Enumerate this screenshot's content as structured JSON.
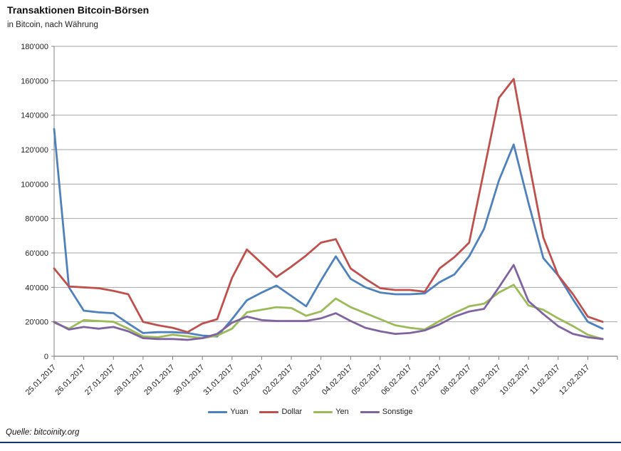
{
  "header": {
    "title": "Transaktionen Bitcoin-Börsen",
    "subtitle": "in Bitcoin, nach Währung"
  },
  "footer": {
    "source": "Quelle: bitcoinity.org",
    "rule_color": "#17375E"
  },
  "colors": {
    "gridline": "#A6A6A6",
    "axis": "#808080",
    "label_text": "#262626"
  },
  "chart_data": {
    "type": "line",
    "title": "Transaktionen Bitcoin-Börsen",
    "subtitle": "in Bitcoin, nach Währung",
    "source": "Quelle: bitcoinity.org",
    "grid": "horizontal",
    "legend_position": "bottom",
    "ylim": [
      0,
      180000
    ],
    "y_tick_step": 20000,
    "y_tick_labels": [
      "0",
      "20'000",
      "40'000",
      "60'000",
      "80'000",
      "100'000",
      "120'000",
      "140'000",
      "160'000",
      "180'000"
    ],
    "x_tick_labels": [
      "25.01.2017",
      "26.01.2017",
      "27.01.2017",
      "28.01.2017",
      "29.01.2017",
      "30.01.2017",
      "31.01.2017",
      "01.02.2017",
      "02.02.2017",
      "03.02.2017",
      "04.02.2017",
      "05.02.2017",
      "06.02.2017",
      "07.02.2017",
      "08.02.2017",
      "09.02.2017",
      "10.02.2017",
      "11.02.2017",
      "12.02.2017"
    ],
    "samples_per_day": 2,
    "series": [
      {
        "name": "Yuan",
        "color": "#4F81BD",
        "values": [
          132000,
          40000,
          26500,
          25500,
          25000,
          19000,
          13500,
          14000,
          14000,
          13500,
          12000,
          11500,
          21500,
          32500,
          37000,
          41000,
          35000,
          29000,
          44000,
          58000,
          45000,
          40000,
          37000,
          36000,
          36000,
          36500,
          43000,
          47500,
          58000,
          74000,
          102000,
          123000,
          89000,
          57000,
          47000,
          33000,
          20000,
          16000
        ]
      },
      {
        "name": "Dollar",
        "color": "#C0504D",
        "values": [
          51000,
          40500,
          40000,
          39500,
          38000,
          36000,
          20000,
          18000,
          16500,
          14000,
          19000,
          21500,
          45500,
          62000,
          54000,
          46000,
          52000,
          58500,
          66000,
          68000,
          51000,
          45000,
          39500,
          38500,
          38500,
          37500,
          51000,
          57500,
          66000,
          108000,
          150000,
          161000,
          114000,
          69000,
          47000,
          36000,
          23000,
          20000
        ]
      },
      {
        "name": "Yen",
        "color": "#9BBB59",
        "values": [
          19500,
          16000,
          21000,
          20500,
          20000,
          16000,
          11500,
          11000,
          12500,
          11500,
          10500,
          12000,
          16000,
          25500,
          27000,
          28500,
          28000,
          23500,
          26000,
          33500,
          28500,
          25000,
          21500,
          18000,
          16500,
          15500,
          20500,
          25000,
          29000,
          30500,
          37000,
          41500,
          29500,
          27000,
          22000,
          17500,
          12500,
          10000
        ]
      },
      {
        "name": "Sonstige",
        "color": "#8064A2",
        "values": [
          20000,
          15500,
          17000,
          16000,
          17000,
          14500,
          10500,
          10000,
          10000,
          9500,
          10500,
          13000,
          19500,
          23000,
          21000,
          20500,
          20500,
          20500,
          22000,
          25000,
          20500,
          16500,
          14500,
          13000,
          13500,
          15000,
          18500,
          23000,
          26000,
          27500,
          40000,
          53000,
          32000,
          24500,
          17500,
          13000,
          11000,
          10000
        ]
      }
    ]
  }
}
